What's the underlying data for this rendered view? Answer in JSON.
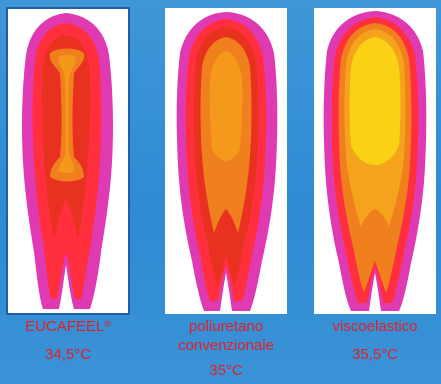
{
  "panels": [
    {
      "name": "EUCAFEEL",
      "mark": "®",
      "temperature": "34,5°C"
    },
    {
      "name_line1": "poliuretano",
      "name_line2": "convenzionale",
      "temperature": "35°C"
    },
    {
      "name": "viscoelastico",
      "temperature": "35,5°C"
    }
  ],
  "colors": {
    "background": "#3488d3",
    "frame_bg": "#ffffff",
    "frame_border": "#1f5faa",
    "caption": "#e41e26",
    "heat_outer": "#e03ab3",
    "heat_mid": "#ff2f3e",
    "heat_red": "#e8321f",
    "heat_orange": "#f07f1d",
    "heat_yellow": "#fbd115"
  }
}
